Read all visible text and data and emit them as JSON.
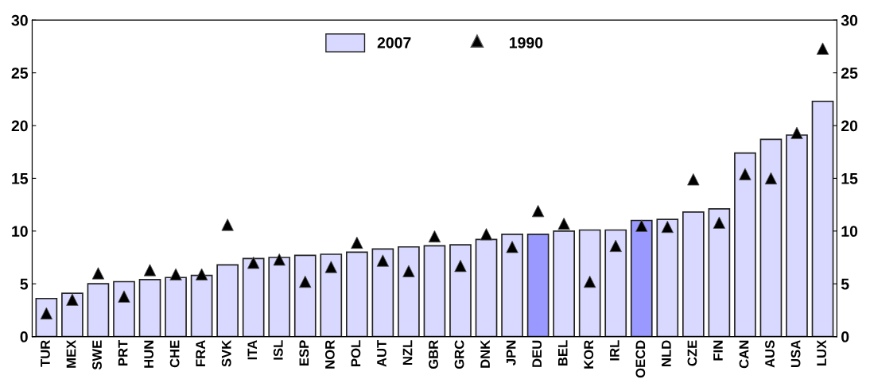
{
  "chart_data": {
    "type": "bar",
    "categories": [
      "TUR",
      "MEX",
      "SWE",
      "PRT",
      "HUN",
      "CHE",
      "FRA",
      "SVK",
      "ITA",
      "ISL",
      "ESP",
      "NOR",
      "POL",
      "AUT",
      "NZL",
      "GBR",
      "GRC",
      "DNK",
      "JPN",
      "DEU",
      "BEL",
      "KOR",
      "IRL",
      "OECD",
      "NLD",
      "CZE",
      "FIN",
      "CAN",
      "AUS",
      "USA",
      "LUX"
    ],
    "series": [
      {
        "name": "2007",
        "color": "#d9d9ff",
        "colors": [
          "#d9d9ff",
          "#d9d9ff",
          "#d9d9ff",
          "#d9d9ff",
          "#d9d9ff",
          "#d9d9ff",
          "#d9d9ff",
          "#d9d9ff",
          "#d9d9ff",
          "#d9d9ff",
          "#d9d9ff",
          "#d9d9ff",
          "#d9d9ff",
          "#d9d9ff",
          "#d9d9ff",
          "#d9d9ff",
          "#d9d9ff",
          "#d9d9ff",
          "#d9d9ff",
          "#9999ff",
          "#d9d9ff",
          "#d9d9ff",
          "#d9d9ff",
          "#9999ff",
          "#d9d9ff",
          "#d9d9ff",
          "#d9d9ff",
          "#d9d9ff",
          "#d9d9ff",
          "#d9d9ff",
          "#d9d9ff"
        ],
        "values": [
          3.6,
          4.1,
          5.0,
          5.2,
          5.4,
          5.6,
          5.8,
          6.8,
          7.4,
          7.5,
          7.7,
          7.8,
          8.0,
          8.3,
          8.5,
          8.6,
          8.7,
          9.2,
          9.7,
          9.7,
          10.0,
          10.1,
          10.1,
          11.0,
          11.1,
          11.8,
          12.1,
          17.4,
          18.7,
          19.1,
          22.3
        ]
      },
      {
        "name": "1990",
        "type": "scatter",
        "color": "#000000",
        "marker": "triangle",
        "values": [
          2.2,
          3.5,
          6.0,
          3.8,
          6.3,
          5.9,
          5.9,
          10.6,
          7.0,
          7.3,
          5.2,
          6.6,
          8.9,
          7.2,
          6.2,
          9.5,
          6.7,
          9.7,
          8.5,
          11.9,
          10.7,
          5.2,
          8.6,
          10.5,
          10.4,
          14.9,
          10.8,
          15.4,
          15.0,
          19.3,
          27.3
        ]
      }
    ],
    "ylim": [
      0,
      30
    ],
    "yticks": [
      0,
      5,
      10,
      15,
      20,
      25,
      30
    ],
    "y2lim": [
      0,
      30
    ],
    "y2ticks": [
      0,
      5,
      10,
      15,
      20,
      25,
      30
    ],
    "grid": false,
    "legend": "top"
  }
}
